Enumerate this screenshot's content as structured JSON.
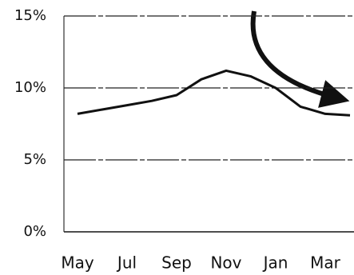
{
  "chart_data": {
    "type": "line",
    "categories": [
      "May",
      null,
      "Jul",
      null,
      "Sep",
      null,
      "Nov",
      null,
      "Jan",
      null,
      "Mar",
      null
    ],
    "series": [
      {
        "color": "#111111",
        "values": [
          8.2,
          8.5,
          8.8,
          9.1,
          9.5,
          10.6,
          11.2,
          10.8,
          10.0,
          8.7,
          8.2,
          8.1
        ]
      }
    ],
    "ylim": [
      0,
      15
    ],
    "yticks": [
      {
        "value": 0,
        "label": "0%"
      },
      {
        "value": 5,
        "label": "5%"
      },
      {
        "value": 10,
        "label": "10%"
      },
      {
        "value": 15,
        "label": "15%"
      }
    ],
    "grid": true
  }
}
